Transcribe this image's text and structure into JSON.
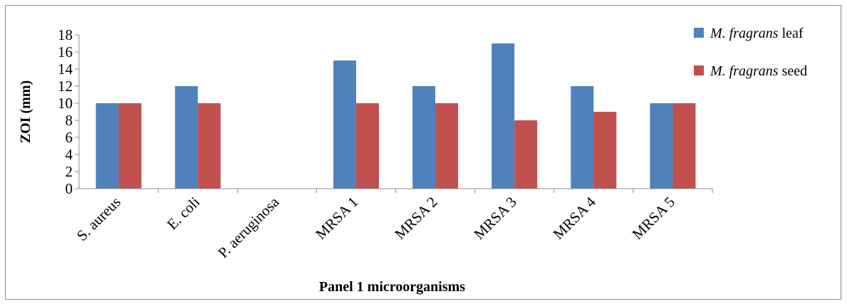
{
  "chart_data": {
    "type": "bar",
    "xlabel": "Panel 1 microorganisms",
    "ylabel": "ZOI (mm)",
    "ylim": [
      0,
      18
    ],
    "yticks": [
      0,
      2,
      4,
      6,
      8,
      10,
      12,
      14,
      16,
      18
    ],
    "grid": false,
    "legend_position": "top-right",
    "categories": [
      "S. aureus",
      "E. coli",
      "P. aeruginosa",
      "MRSA 1",
      "MRSA 2",
      "MRSA 3",
      "MRSA 4",
      "MRSA 5"
    ],
    "series": [
      {
        "name": "M. fragrans leaf",
        "name_italic": "M. fragrans",
        "name_plain": " leaf",
        "color": "#4f81bd",
        "values": [
          10,
          12,
          0,
          15,
          12,
          17,
          12,
          10
        ]
      },
      {
        "name": "M. fragrans seed",
        "name_italic": "M. fragrans",
        "name_plain": " seed",
        "color": "#c0504d",
        "values": [
          10,
          10,
          0,
          10,
          10,
          8,
          9,
          10
        ]
      }
    ]
  }
}
